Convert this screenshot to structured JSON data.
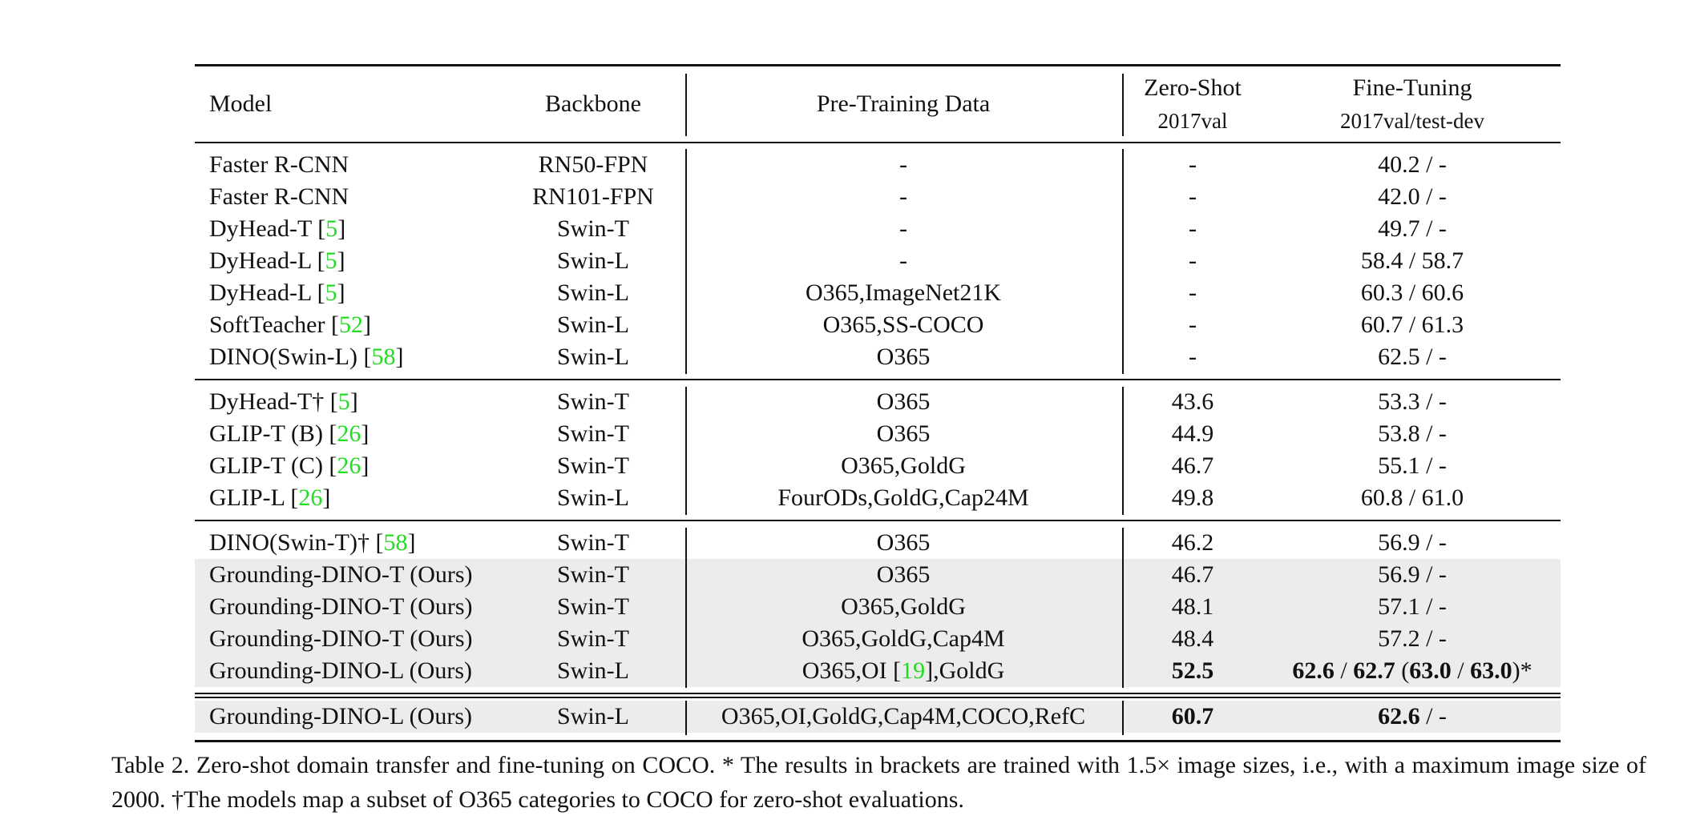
{
  "table": {
    "header": [
      "Model",
      "Backbone",
      "Pre-Training Data",
      [
        "Zero-Shot",
        "2017val"
      ],
      [
        "Fine-Tuning",
        "2017val/test-dev"
      ]
    ],
    "groups": [
      [
        {
          "cells": [
            "Faster R-CNN",
            "RN50-FPN",
            "-",
            "-",
            "40.2 / -"
          ]
        },
        {
          "cells": [
            "Faster R-CNN",
            "RN101-FPN",
            "-",
            "-",
            "42.0 / -"
          ]
        },
        {
          "cells": [
            "DyHead-T [5]",
            "Swin-T",
            "-",
            "-",
            "49.7 / -"
          ]
        },
        {
          "cells": [
            "DyHead-L [5]",
            "Swin-L",
            "-",
            "-",
            "58.4 / 58.7"
          ]
        },
        {
          "cells": [
            "DyHead-L [5]",
            "Swin-L",
            "O365,ImageNet21K",
            "-",
            "60.3 / 60.6"
          ]
        },
        {
          "cells": [
            "SoftTeacher [52]",
            "Swin-L",
            "O365,SS-COCO",
            "-",
            "60.7 / 61.3"
          ]
        },
        {
          "cells": [
            "DINO(Swin-L) [58]",
            "Swin-L",
            "O365",
            "-",
            "62.5 / -"
          ]
        }
      ],
      [
        {
          "cells": [
            "DyHead-T† [5]",
            "Swin-T",
            "O365",
            "43.6",
            "53.3 / -"
          ]
        },
        {
          "cells": [
            "GLIP-T (B) [26]",
            "Swin-T",
            "O365",
            "44.9",
            "53.8 / -"
          ]
        },
        {
          "cells": [
            "GLIP-T (C) [26]",
            "Swin-T",
            "O365,GoldG",
            "46.7",
            "55.1 / -"
          ]
        },
        {
          "cells": [
            "GLIP-L [26]",
            "Swin-L",
            "FourODs,GoldG,Cap24M",
            "49.8",
            "60.8 / 61.0"
          ]
        }
      ],
      [
        {
          "cells": [
            "DINO(Swin-T)† [58]",
            "Swin-T",
            "O365",
            "46.2",
            "56.9 / -"
          ]
        },
        {
          "cells": [
            "Grounding-DINO-T (Ours)",
            "Swin-T",
            "O365",
            "46.7",
            "56.9 / -"
          ],
          "shaded": true
        },
        {
          "cells": [
            "Grounding-DINO-T (Ours)",
            "Swin-T",
            "O365,GoldG",
            "48.1",
            "57.1 / -"
          ],
          "shaded": true
        },
        {
          "cells": [
            "Grounding-DINO-T (Ours)",
            "Swin-T",
            "O365,GoldG,Cap4M",
            "48.4",
            "57.2 / -"
          ],
          "shaded": true
        },
        {
          "cells": [
            "Grounding-DINO-L (Ours)",
            "Swin-L",
            "O365,OI [19],GoldG",
            "52.5",
            "62.6 / 62.7 (63.0 / 63.0)*"
          ],
          "shaded": true,
          "bold": [
            3,
            4
          ]
        }
      ],
      [
        {
          "cells": [
            "Grounding-DINO-L (Ours)",
            "Swin-L",
            "O365,OI,GoldG,Cap4M,COCO,RefC",
            "60.7",
            "62.6 / -"
          ],
          "shaded": true,
          "bold": [
            3,
            4
          ]
        }
      ]
    ],
    "caption": "Table 2.  Zero-shot domain transfer and fine-tuning on COCO. * The results in brackets are trained with 1.5× image sizes, i.e., with a maximum image size of 2000. †The models map a subset of O365 categories to COCO for zero-shot evaluations."
  }
}
